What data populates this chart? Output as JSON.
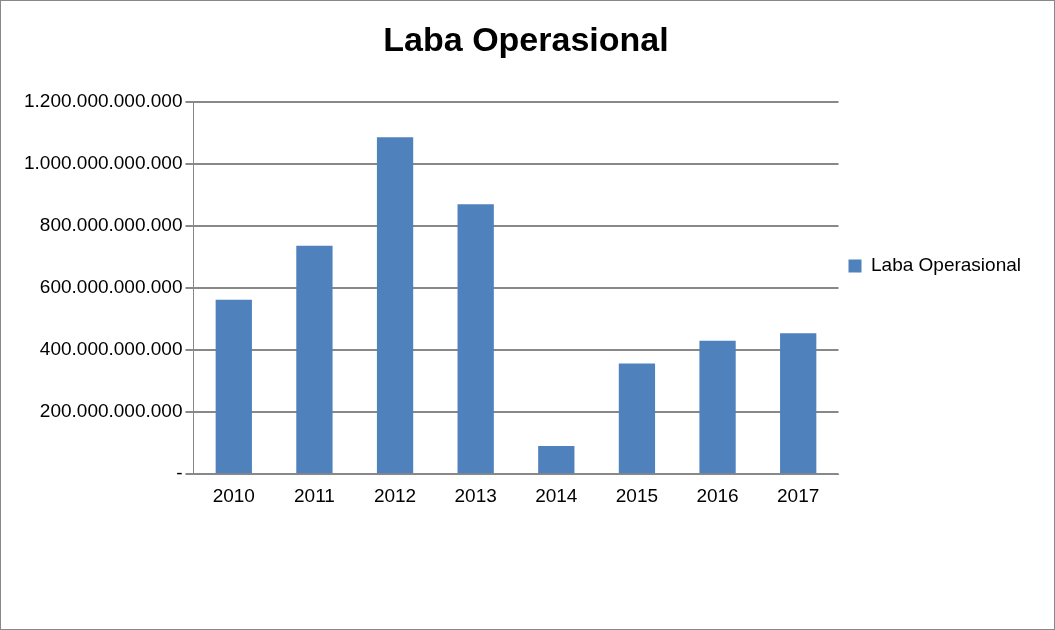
{
  "chart_data": {
    "type": "bar",
    "title": "Laba Operasional",
    "categories": [
      "2010",
      "2011",
      "2012",
      "2013",
      "2014",
      "2015",
      "2016",
      "2017"
    ],
    "series": [
      {
        "name": "Laba Operasional",
        "color": "#4f81bd",
        "values": [
          562000000000,
          736000000000,
          1086000000000,
          870000000000,
          91000000000,
          357000000000,
          430000000000,
          454000000000
        ]
      }
    ],
    "ylim": [
      0,
      1200000000000
    ],
    "yticks": [
      {
        "value": 0,
        "label": "-"
      },
      {
        "value": 200000000000,
        "label": "200.000.000.000"
      },
      {
        "value": 400000000000,
        "label": "400.000.000.000"
      },
      {
        "value": 600000000000,
        "label": "600.000.000.000"
      },
      {
        "value": 800000000000,
        "label": "800.000.000.000"
      },
      {
        "value": 1000000000000,
        "label": "1.000.000.000.000"
      },
      {
        "value": 1200000000000,
        "label": "1.200.000.000.000"
      }
    ],
    "grid": "y",
    "legend": "right"
  }
}
